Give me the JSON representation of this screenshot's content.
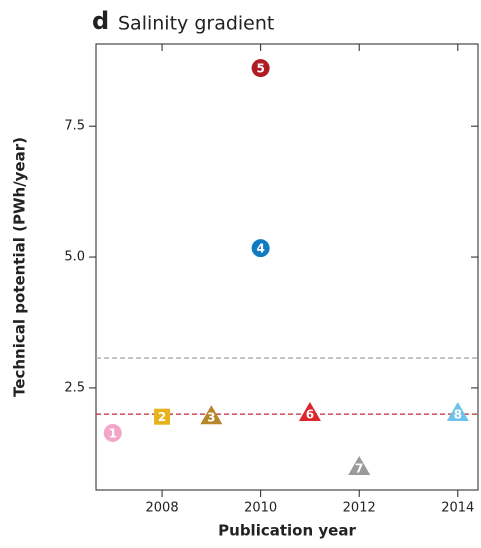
{
  "chart_data": {
    "type": "scatter",
    "panel_label": "d",
    "title": "Salinity gradient",
    "x_label": "Publication year",
    "y_label": "Technical potential (PWh/year)",
    "xlim": [
      2006.66,
      2014.41
    ],
    "ylim": [
      0.55,
      9.07
    ],
    "xticks": [
      2008,
      2010,
      2012,
      2014
    ],
    "yticks": [
      2.5,
      {
        "value": 5,
        "label": "5.0"
      },
      7.5
    ],
    "points": [
      {
        "label": "1",
        "x": 2007,
        "y": 1.64,
        "marker": "circle",
        "color": "#f2a7c9"
      },
      {
        "label": "2",
        "x": 2008,
        "y": 1.95,
        "marker": "square",
        "color": "#e8b21c"
      },
      {
        "label": "3",
        "x": 2009,
        "y": 1.96,
        "marker": "triangle",
        "color": "#b8862a"
      },
      {
        "label": "4",
        "x": 2010,
        "y": 5.17,
        "marker": "circle",
        "color": "#0f7cc1"
      },
      {
        "label": "5",
        "x": 2010,
        "y": 8.61,
        "marker": "circle",
        "color": "#b01c24"
      },
      {
        "label": "6",
        "x": 2011,
        "y": 2.02,
        "marker": "triangle",
        "color": "#e0242c"
      },
      {
        "label": "7",
        "x": 2012,
        "y": 0.99,
        "marker": "triangle",
        "color": "#9a9a9a"
      },
      {
        "label": "8",
        "x": 2014,
        "y": 2.02,
        "marker": "triangle",
        "color": "#6ec3ea"
      }
    ],
    "hlines": [
      {
        "value": 2.0,
        "color": "#c0282d"
      },
      {
        "value": 3.07,
        "color": "#aaaaaa"
      }
    ]
  }
}
